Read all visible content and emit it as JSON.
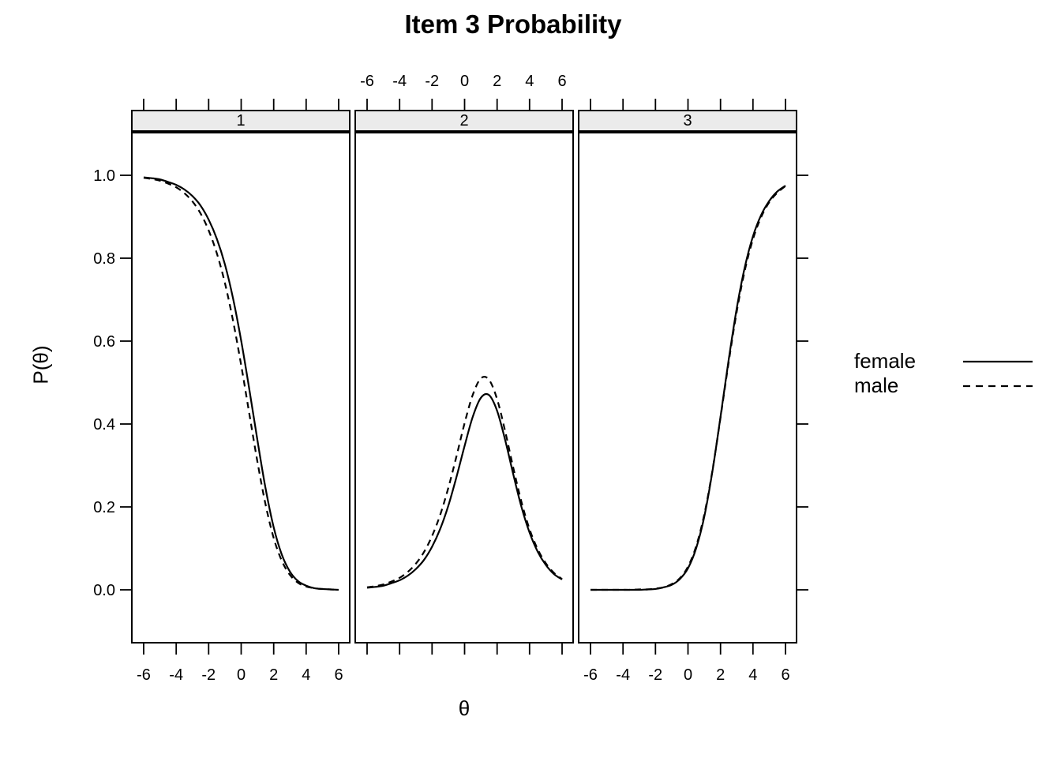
{
  "chart_data": {
    "type": "line",
    "title": "Item 3 Probability",
    "xlabel": "θ",
    "ylabel": "P(θ)",
    "panels": [
      {
        "label": "1"
      },
      {
        "label": "2"
      },
      {
        "label": "3"
      }
    ],
    "x_tick_labels": [
      "-6",
      "-4",
      "-2",
      "0",
      "2",
      "4",
      "6"
    ],
    "x_tick_values": [
      -6,
      -4,
      -2,
      0,
      2,
      4,
      6
    ],
    "y_tick_labels": [
      "0.0",
      "0.2",
      "0.4",
      "0.6",
      "0.8",
      "1.0"
    ],
    "y_tick_values": [
      0.0,
      0.2,
      0.4,
      0.6,
      0.8,
      1.0
    ],
    "xlim": [
      -6.8,
      6.9
    ],
    "ylim": [
      -0.04,
      1.08
    ],
    "grid": false,
    "layout": {
      "x_labels_bottom_panels": [
        0,
        2
      ],
      "x_labels_top_panels": [
        1
      ],
      "legend_position": "right"
    },
    "line_color": "#000000",
    "strip_fill": "#ebebeb",
    "x": [
      -6,
      -5.5,
      -5,
      -4.5,
      -4,
      -3.5,
      -3,
      -2.5,
      -2,
      -1.5,
      -1,
      -0.5,
      0,
      0.5,
      1,
      1.5,
      2,
      2.5,
      3,
      3.5,
      4,
      4.5,
      5,
      5.5,
      6
    ],
    "series": [
      {
        "name": "female",
        "style": "solid",
        "panels": [
          [
            0.995,
            0.993,
            0.99,
            0.984,
            0.977,
            0.966,
            0.95,
            0.927,
            0.893,
            0.847,
            0.785,
            0.703,
            0.601,
            0.484,
            0.361,
            0.245,
            0.151,
            0.085,
            0.044,
            0.021,
            0.01,
            0.004,
            0.002,
            0.001,
            0.0
          ],
          [
            0.005,
            0.007,
            0.01,
            0.016,
            0.023,
            0.034,
            0.05,
            0.072,
            0.104,
            0.147,
            0.203,
            0.272,
            0.347,
            0.417,
            0.463,
            0.47,
            0.432,
            0.361,
            0.278,
            0.2,
            0.138,
            0.092,
            0.06,
            0.038,
            0.025
          ],
          [
            0.0,
            0.0,
            0.0,
            0.0,
            0.0,
            0.0,
            0.0,
            0.001,
            0.002,
            0.006,
            0.012,
            0.026,
            0.052,
            0.1,
            0.176,
            0.285,
            0.417,
            0.554,
            0.679,
            0.779,
            0.853,
            0.904,
            0.938,
            0.961,
            0.975
          ]
        ]
      },
      {
        "name": "male",
        "style": "dashed",
        "panels": [
          [
            0.994,
            0.991,
            0.987,
            0.98,
            0.971,
            0.957,
            0.937,
            0.908,
            0.867,
            0.812,
            0.74,
            0.649,
            0.542,
            0.425,
            0.309,
            0.206,
            0.125,
            0.07,
            0.036,
            0.017,
            0.008,
            0.004,
            0.002,
            0.001,
            0.0
          ],
          [
            0.006,
            0.009,
            0.013,
            0.02,
            0.029,
            0.043,
            0.063,
            0.091,
            0.13,
            0.181,
            0.246,
            0.322,
            0.402,
            0.47,
            0.51,
            0.507,
            0.46,
            0.382,
            0.294,
            0.212,
            0.146,
            0.098,
            0.064,
            0.041,
            0.026
          ],
          [
            0.0,
            0.0,
            0.0,
            0.0,
            0.0,
            0.0,
            0.001,
            0.001,
            0.003,
            0.006,
            0.014,
            0.028,
            0.056,
            0.105,
            0.181,
            0.287,
            0.415,
            0.548,
            0.671,
            0.771,
            0.846,
            0.899,
            0.935,
            0.958,
            0.974
          ]
        ]
      }
    ]
  }
}
